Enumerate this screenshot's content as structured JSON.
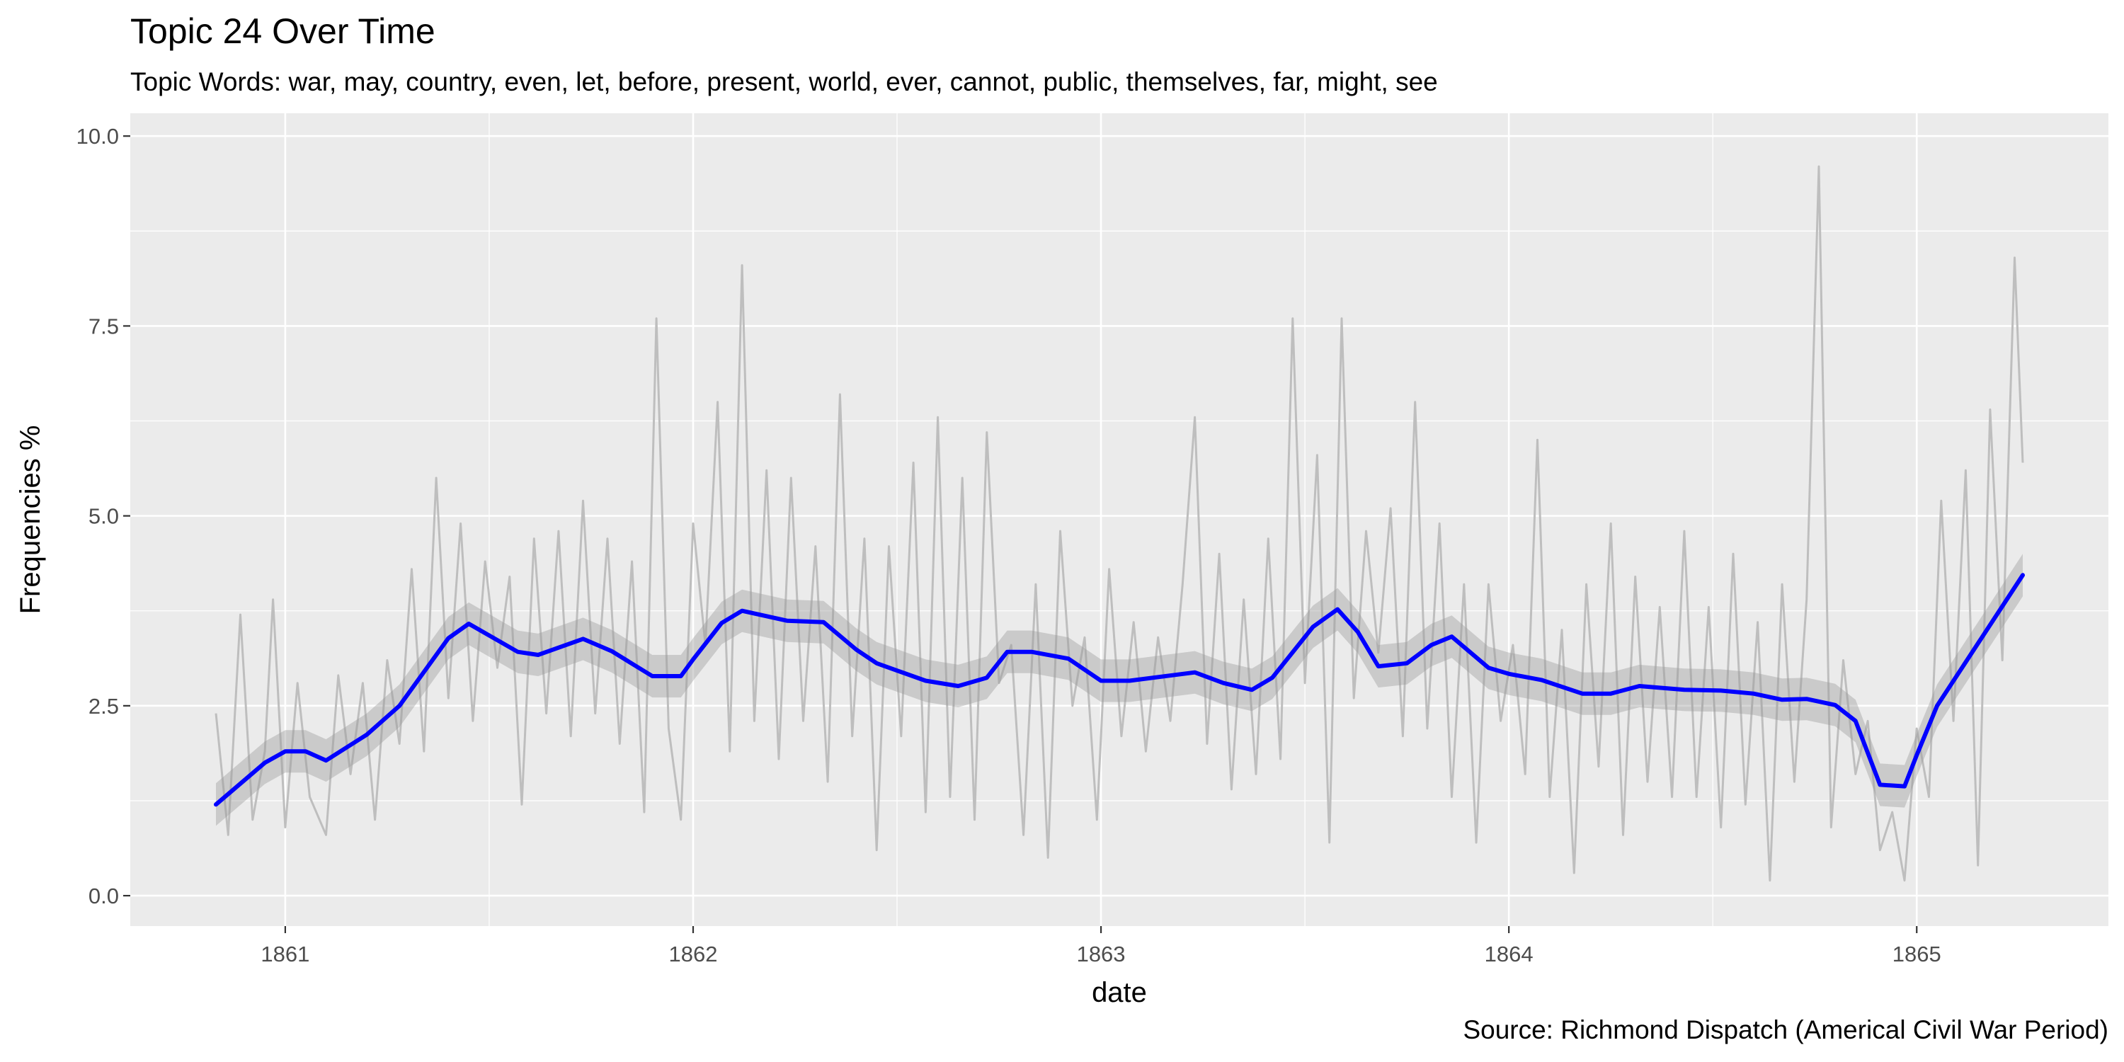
{
  "title": "Topic 24 Over Time",
  "subtitle": "Topic Words: war, may, country, even, let, before, present, world, ever, cannot, public, themselves, far, might, see",
  "caption": "Source: Richmond Dispatch (Americal Civil War Period)",
  "colors": {
    "panel_background": "#ebebeb",
    "grid": "#ffffff",
    "raw_series": "#bebebe",
    "confidence_band": "#999999",
    "smooth_line": "#0000ff"
  },
  "chart_data": {
    "type": "line",
    "title": "Topic 24 Over Time",
    "subtitle": "Topic Words: war, may, country, even, let, before, present, world, ever, cannot, public, themselves, far, might, see",
    "xlabel": "date",
    "ylabel": "Frequencies %",
    "x_tick_labels": [
      "1861",
      "1862",
      "1863",
      "1864",
      "1865"
    ],
    "y_tick_labels": [
      "0.0",
      "2.5",
      "5.0",
      "7.5",
      "10.0"
    ],
    "y_ticks": [
      0,
      2.5,
      5,
      7.5,
      10
    ],
    "xlim": [
      1860.62,
      1865.47
    ],
    "ylim": [
      -0.4,
      10.3
    ],
    "grid": true,
    "series": [
      {
        "style": "grey raw daily line",
        "x": [
          1860.83,
          1860.86,
          1860.89,
          1860.92,
          1860.95,
          1860.97,
          1861.0,
          1861.03,
          1861.06,
          1861.1,
          1861.13,
          1861.16,
          1861.19,
          1861.22,
          1861.25,
          1861.28,
          1861.31,
          1861.34,
          1861.37,
          1861.4,
          1861.43,
          1861.46,
          1861.49,
          1861.52,
          1861.55,
          1861.58,
          1861.61,
          1861.64,
          1861.67,
          1861.7,
          1861.73,
          1861.76,
          1861.79,
          1861.82,
          1861.85,
          1861.88,
          1861.91,
          1861.94,
          1861.97,
          1862.0,
          1862.03,
          1862.06,
          1862.09,
          1862.12,
          1862.15,
          1862.18,
          1862.21,
          1862.24,
          1862.27,
          1862.3,
          1862.33,
          1862.36,
          1862.39,
          1862.42,
          1862.45,
          1862.48,
          1862.51,
          1862.54,
          1862.57,
          1862.6,
          1862.63,
          1862.66,
          1862.69,
          1862.72,
          1862.75,
          1862.78,
          1862.81,
          1862.84,
          1862.87,
          1862.9,
          1862.93,
          1862.96,
          1862.99,
          1863.02,
          1863.05,
          1863.08,
          1863.11,
          1863.14,
          1863.17,
          1863.2,
          1863.23,
          1863.26,
          1863.29,
          1863.32,
          1863.35,
          1863.38,
          1863.41,
          1863.44,
          1863.47,
          1863.5,
          1863.53,
          1863.56,
          1863.59,
          1863.62,
          1863.65,
          1863.68,
          1863.71,
          1863.74,
          1863.77,
          1863.8,
          1863.83,
          1863.86,
          1863.89,
          1863.92,
          1863.95,
          1863.98,
          1864.01,
          1864.04,
          1864.07,
          1864.1,
          1864.13,
          1864.16,
          1864.19,
          1864.22,
          1864.25,
          1864.28,
          1864.31,
          1864.34,
          1864.37,
          1864.4,
          1864.43,
          1864.46,
          1864.49,
          1864.52,
          1864.55,
          1864.58,
          1864.61,
          1864.64,
          1864.67,
          1864.7,
          1864.73,
          1864.76,
          1864.79,
          1864.82,
          1864.85,
          1864.88,
          1864.91,
          1864.94,
          1864.97,
          1865.0,
          1865.03,
          1865.06,
          1865.09,
          1865.12,
          1865.15,
          1865.18,
          1865.21,
          1865.24,
          1865.26
        ],
        "y": [
          2.4,
          0.8,
          3.7,
          1.0,
          1.9,
          3.9,
          0.9,
          2.8,
          1.3,
          0.8,
          2.9,
          1.6,
          2.8,
          1.0,
          3.1,
          2.0,
          4.3,
          1.9,
          5.5,
          2.6,
          4.9,
          2.3,
          4.4,
          3.0,
          4.2,
          1.2,
          4.7,
          2.4,
          4.8,
          2.1,
          5.2,
          2.4,
          4.7,
          2.0,
          4.4,
          1.1,
          7.6,
          2.2,
          1.0,
          4.9,
          3.3,
          6.5,
          1.9,
          8.3,
          2.3,
          5.6,
          1.8,
          5.5,
          2.3,
          4.6,
          1.5,
          6.6,
          2.1,
          4.7,
          0.6,
          4.6,
          2.1,
          5.7,
          1.1,
          6.3,
          1.3,
          5.5,
          1.0,
          6.1,
          2.8,
          3.3,
          0.8,
          4.1,
          0.5,
          4.8,
          2.5,
          3.4,
          1.0,
          4.3,
          2.1,
          3.6,
          1.9,
          3.4,
          2.3,
          4.1,
          6.3,
          2.0,
          4.5,
          1.4,
          3.9,
          1.6,
          4.7,
          1.8,
          7.6,
          2.8,
          5.8,
          0.7,
          7.6,
          2.6,
          4.8,
          3.2,
          5.1,
          2.1,
          6.5,
          2.2,
          4.9,
          1.3,
          4.1,
          0.7,
          4.1,
          2.3,
          3.3,
          1.6,
          6.0,
          1.3,
          3.5,
          0.3,
          4.1,
          1.7,
          4.9,
          0.8,
          4.2,
          1.5,
          3.8,
          1.3,
          4.8,
          1.3,
          3.8,
          0.9,
          4.5,
          1.2,
          3.6,
          0.2,
          4.1,
          1.5,
          3.9,
          9.6,
          0.9,
          3.1,
          1.6,
          2.3,
          0.6,
          1.1,
          0.2,
          2.2,
          1.3,
          5.2,
          2.3,
          5.6,
          0.4,
          6.4,
          3.1,
          8.4,
          5.7
        ]
      },
      {
        "style": "blue smoothed trend with grey confidence band",
        "x": [
          1860.83,
          1860.95,
          1861.0,
          1861.05,
          1861.1,
          1861.2,
          1861.28,
          1861.4,
          1861.45,
          1861.57,
          1861.62,
          1861.73,
          1861.8,
          1861.9,
          1861.97,
          1862.0,
          1862.07,
          1862.12,
          1862.23,
          1862.32,
          1862.4,
          1862.45,
          1862.57,
          1862.65,
          1862.72,
          1862.77,
          1862.83,
          1862.92,
          1863.0,
          1863.07,
          1863.23,
          1863.3,
          1863.37,
          1863.42,
          1863.52,
          1863.58,
          1863.63,
          1863.68,
          1863.75,
          1863.81,
          1863.86,
          1863.95,
          1864.0,
          1864.08,
          1864.18,
          1864.25,
          1864.32,
          1864.43,
          1864.52,
          1864.6,
          1864.67,
          1864.73,
          1864.8,
          1864.85,
          1864.91,
          1864.97,
          1865.0,
          1865.05,
          1865.26
        ],
        "y": [
          1.2,
          1.75,
          1.9,
          1.9,
          1.78,
          2.12,
          2.5,
          3.39,
          3.58,
          3.21,
          3.17,
          3.38,
          3.22,
          2.89,
          2.89,
          3.11,
          3.59,
          3.75,
          3.62,
          3.6,
          3.24,
          3.06,
          2.83,
          2.76,
          2.87,
          3.21,
          3.21,
          3.12,
          2.83,
          2.83,
          2.94,
          2.8,
          2.71,
          2.87,
          3.54,
          3.77,
          3.47,
          3.02,
          3.06,
          3.3,
          3.41,
          3.0,
          2.92,
          2.84,
          2.66,
          2.66,
          2.76,
          2.71,
          2.7,
          2.66,
          2.58,
          2.59,
          2.51,
          2.3,
          1.46,
          1.44,
          1.85,
          2.5,
          4.22
        ],
        "band_halfwidth": 0.28
      }
    ]
  }
}
